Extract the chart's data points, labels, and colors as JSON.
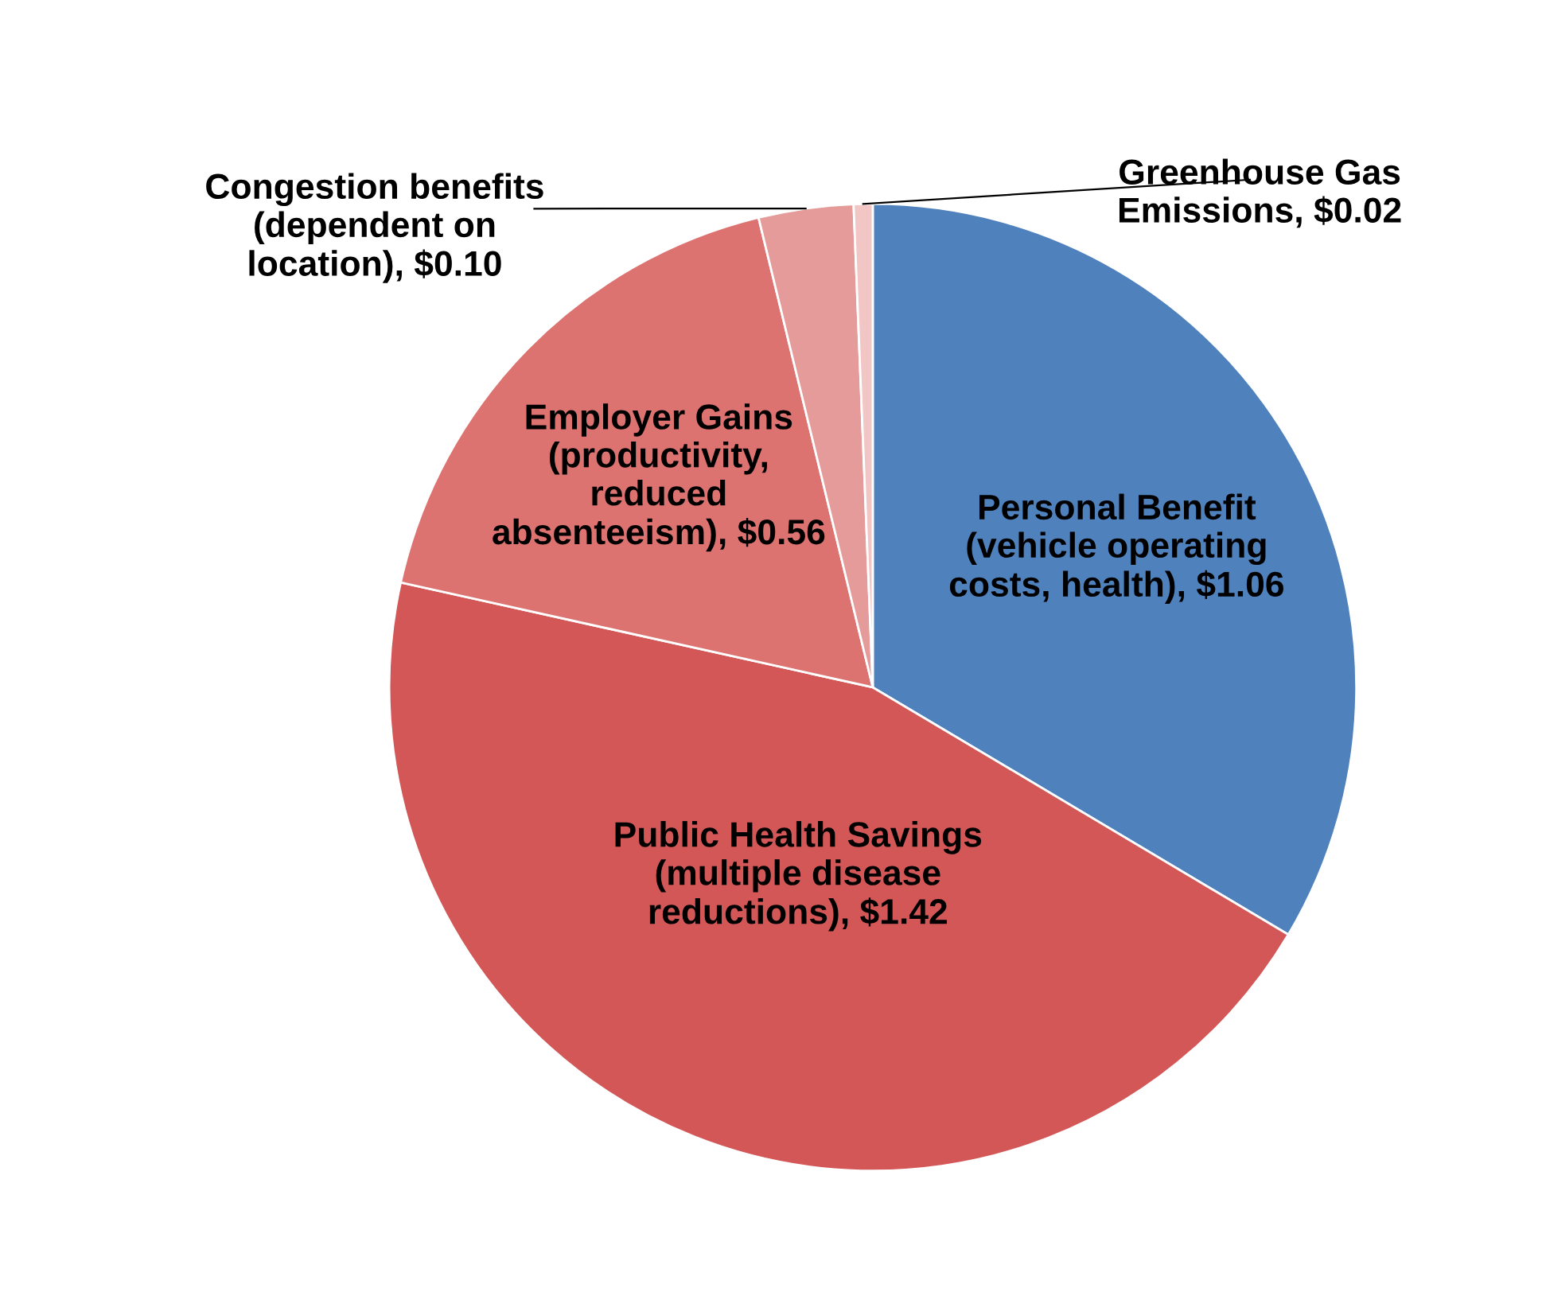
{
  "chart_data": {
    "type": "pie",
    "categories": [
      "Personal Benefit\n(vehicle operating\ncosts, health)",
      "Public Health Savings\n(multiple disease\nreductions)",
      "Employer Gains\n(productivity,\nreduced\nabsenteeism)",
      "Congestion benefits\n(dependent on\nlocation)",
      "Greenhouse Gas\nEmissions"
    ],
    "values": [
      1.06,
      1.42,
      0.56,
      0.1,
      0.02
    ],
    "value_labels": [
      "$1.06",
      "$1.42",
      "$0.56",
      "$0.10",
      "$0.02"
    ],
    "colors": [
      "#4f81bd",
      "#d35757",
      "#dd7370",
      "#e49b99",
      "#f3c6c6"
    ],
    "data_labels": true
  }
}
